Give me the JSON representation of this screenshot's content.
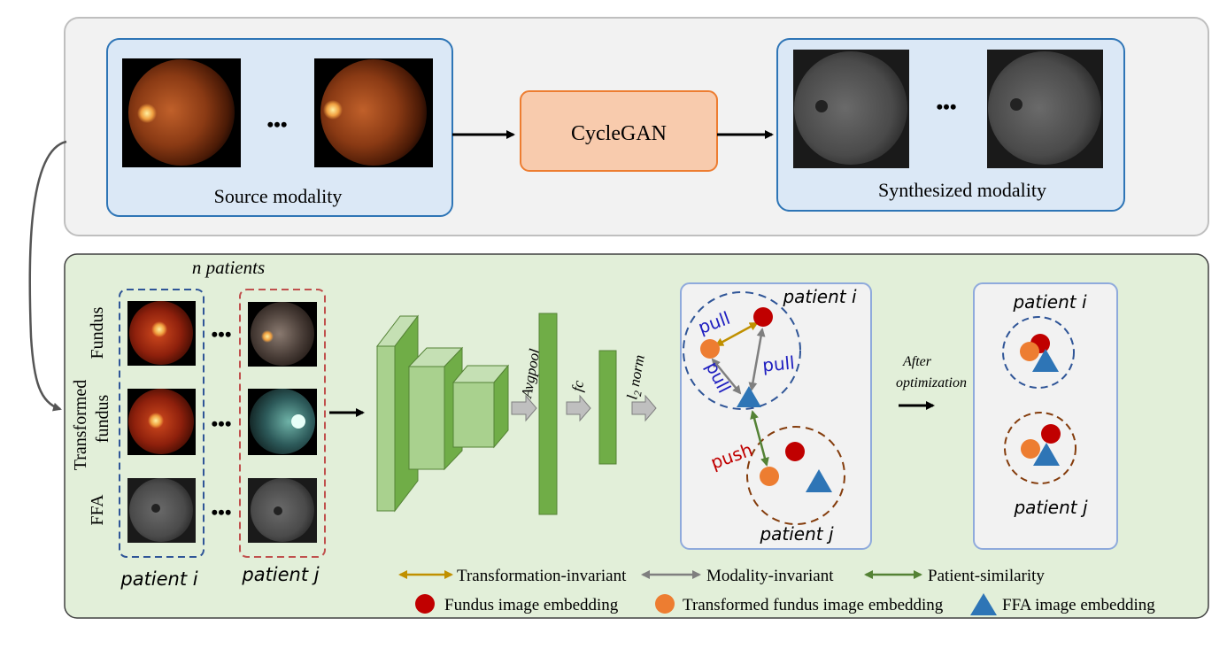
{
  "top": {
    "source_label": "Source modality",
    "cyclegan_label": "CycleGAN",
    "synth_label": "Synthesized modality",
    "ellipsis": "•••"
  },
  "bottom": {
    "n_patients": "n patients",
    "row_fundus": "Fundus",
    "row_transformed_1": "Transformed",
    "row_transformed_2": "fundus",
    "row_ffa": "FFA",
    "ellipsis": "•••",
    "patient_i": "patient i",
    "patient_j": "patient j",
    "avgpool": "Avgpool",
    "fc": "fc",
    "l2_l": "l",
    "l2_sub": "2",
    "l2_norm": " norm",
    "after_1": "After",
    "after_2": "optimization",
    "pull": "pull",
    "push": "push"
  },
  "legend": {
    "transformation": "Transformation-invariant",
    "modality": "Modality-invariant",
    "patient": "Patient-similarity",
    "fundus_emb": "Fundus image embedding",
    "transformed_emb": "Transformed fundus image embedding",
    "ffa_emb": "FFA image embedding"
  },
  "colors": {
    "fundus_red": "#c00000",
    "transformed_orange": "#ed7d31",
    "ffa_blue": "#2e75b6",
    "transform_arrow": "#c09000",
    "modality_arrow": "#7f7f7f",
    "patient_arrow": "#548235",
    "pull_text": "#2020c0",
    "push_text": "#c00000"
  }
}
